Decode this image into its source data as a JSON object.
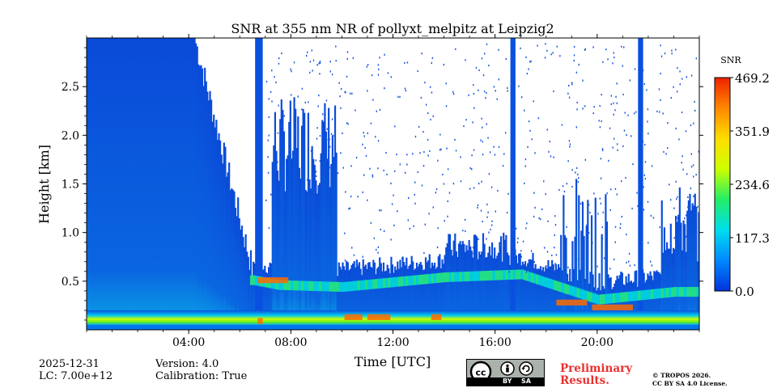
{
  "chart_data": {
    "type": "heatmap",
    "title": "SNR at 355 nm NR of pollyxt_melpitz at Leipzig2",
    "xlabel": "Time [UTC]",
    "ylabel": "Height [km]",
    "xlim": [
      0,
      24
    ],
    "ylim": [
      0,
      3.0
    ],
    "x_ticks": [
      4,
      8,
      12,
      16,
      20
    ],
    "x_tick_labels": [
      "04:00",
      "08:00",
      "12:00",
      "16:00",
      "20:00"
    ],
    "y_ticks": [
      0.5,
      1.0,
      1.5,
      2.0,
      2.5
    ],
    "y_tick_labels": [
      "0.5",
      "1.0",
      "1.5",
      "2.0",
      "2.5"
    ],
    "colorbar": {
      "label": "SNR",
      "min": 0.0,
      "max": 469.2,
      "ticks": [
        "469.2",
        "351.9",
        "234.6",
        "117.3",
        "0.0"
      ],
      "colors": [
        "#0033dd",
        "#0088ff",
        "#00ddee",
        "#22ee66",
        "#ccff00",
        "#ffdd00",
        "#ff8800",
        "#ee2200"
      ]
    },
    "no_data_color": "#ffffff",
    "background_signal_color": "#0a50e0",
    "features": {
      "full_column_signal_hours": [
        [
          0,
          4.2
        ]
      ],
      "vertical_signal_bands_hours": [
        [
          6.6,
          6.9
        ],
        [
          16.6,
          16.8
        ],
        [
          21.6,
          21.8
        ]
      ],
      "boundary_layer_top_km": [
        [
          6.5,
          0.52
        ],
        [
          7.5,
          0.47
        ],
        [
          10,
          0.45
        ],
        [
          14,
          0.55
        ],
        [
          17,
          0.58
        ],
        [
          20,
          0.32
        ],
        [
          23,
          0.4
        ]
      ],
      "high_snr_near_ground_km": [
        0.05,
        0.2
      ]
    }
  },
  "footer": {
    "date": "2025-12-31",
    "lc": "LC: 7.00e+12",
    "version": "Version: 4.0",
    "calibration": "Calibration: True",
    "preliminary_1": "Preliminary",
    "preliminary_2": "Results.",
    "copyright_1": "© TROPOS 2026.",
    "copyright_2": "CC BY SA 4.0 License.",
    "license_badge": [
      "BY",
      "SA"
    ]
  }
}
